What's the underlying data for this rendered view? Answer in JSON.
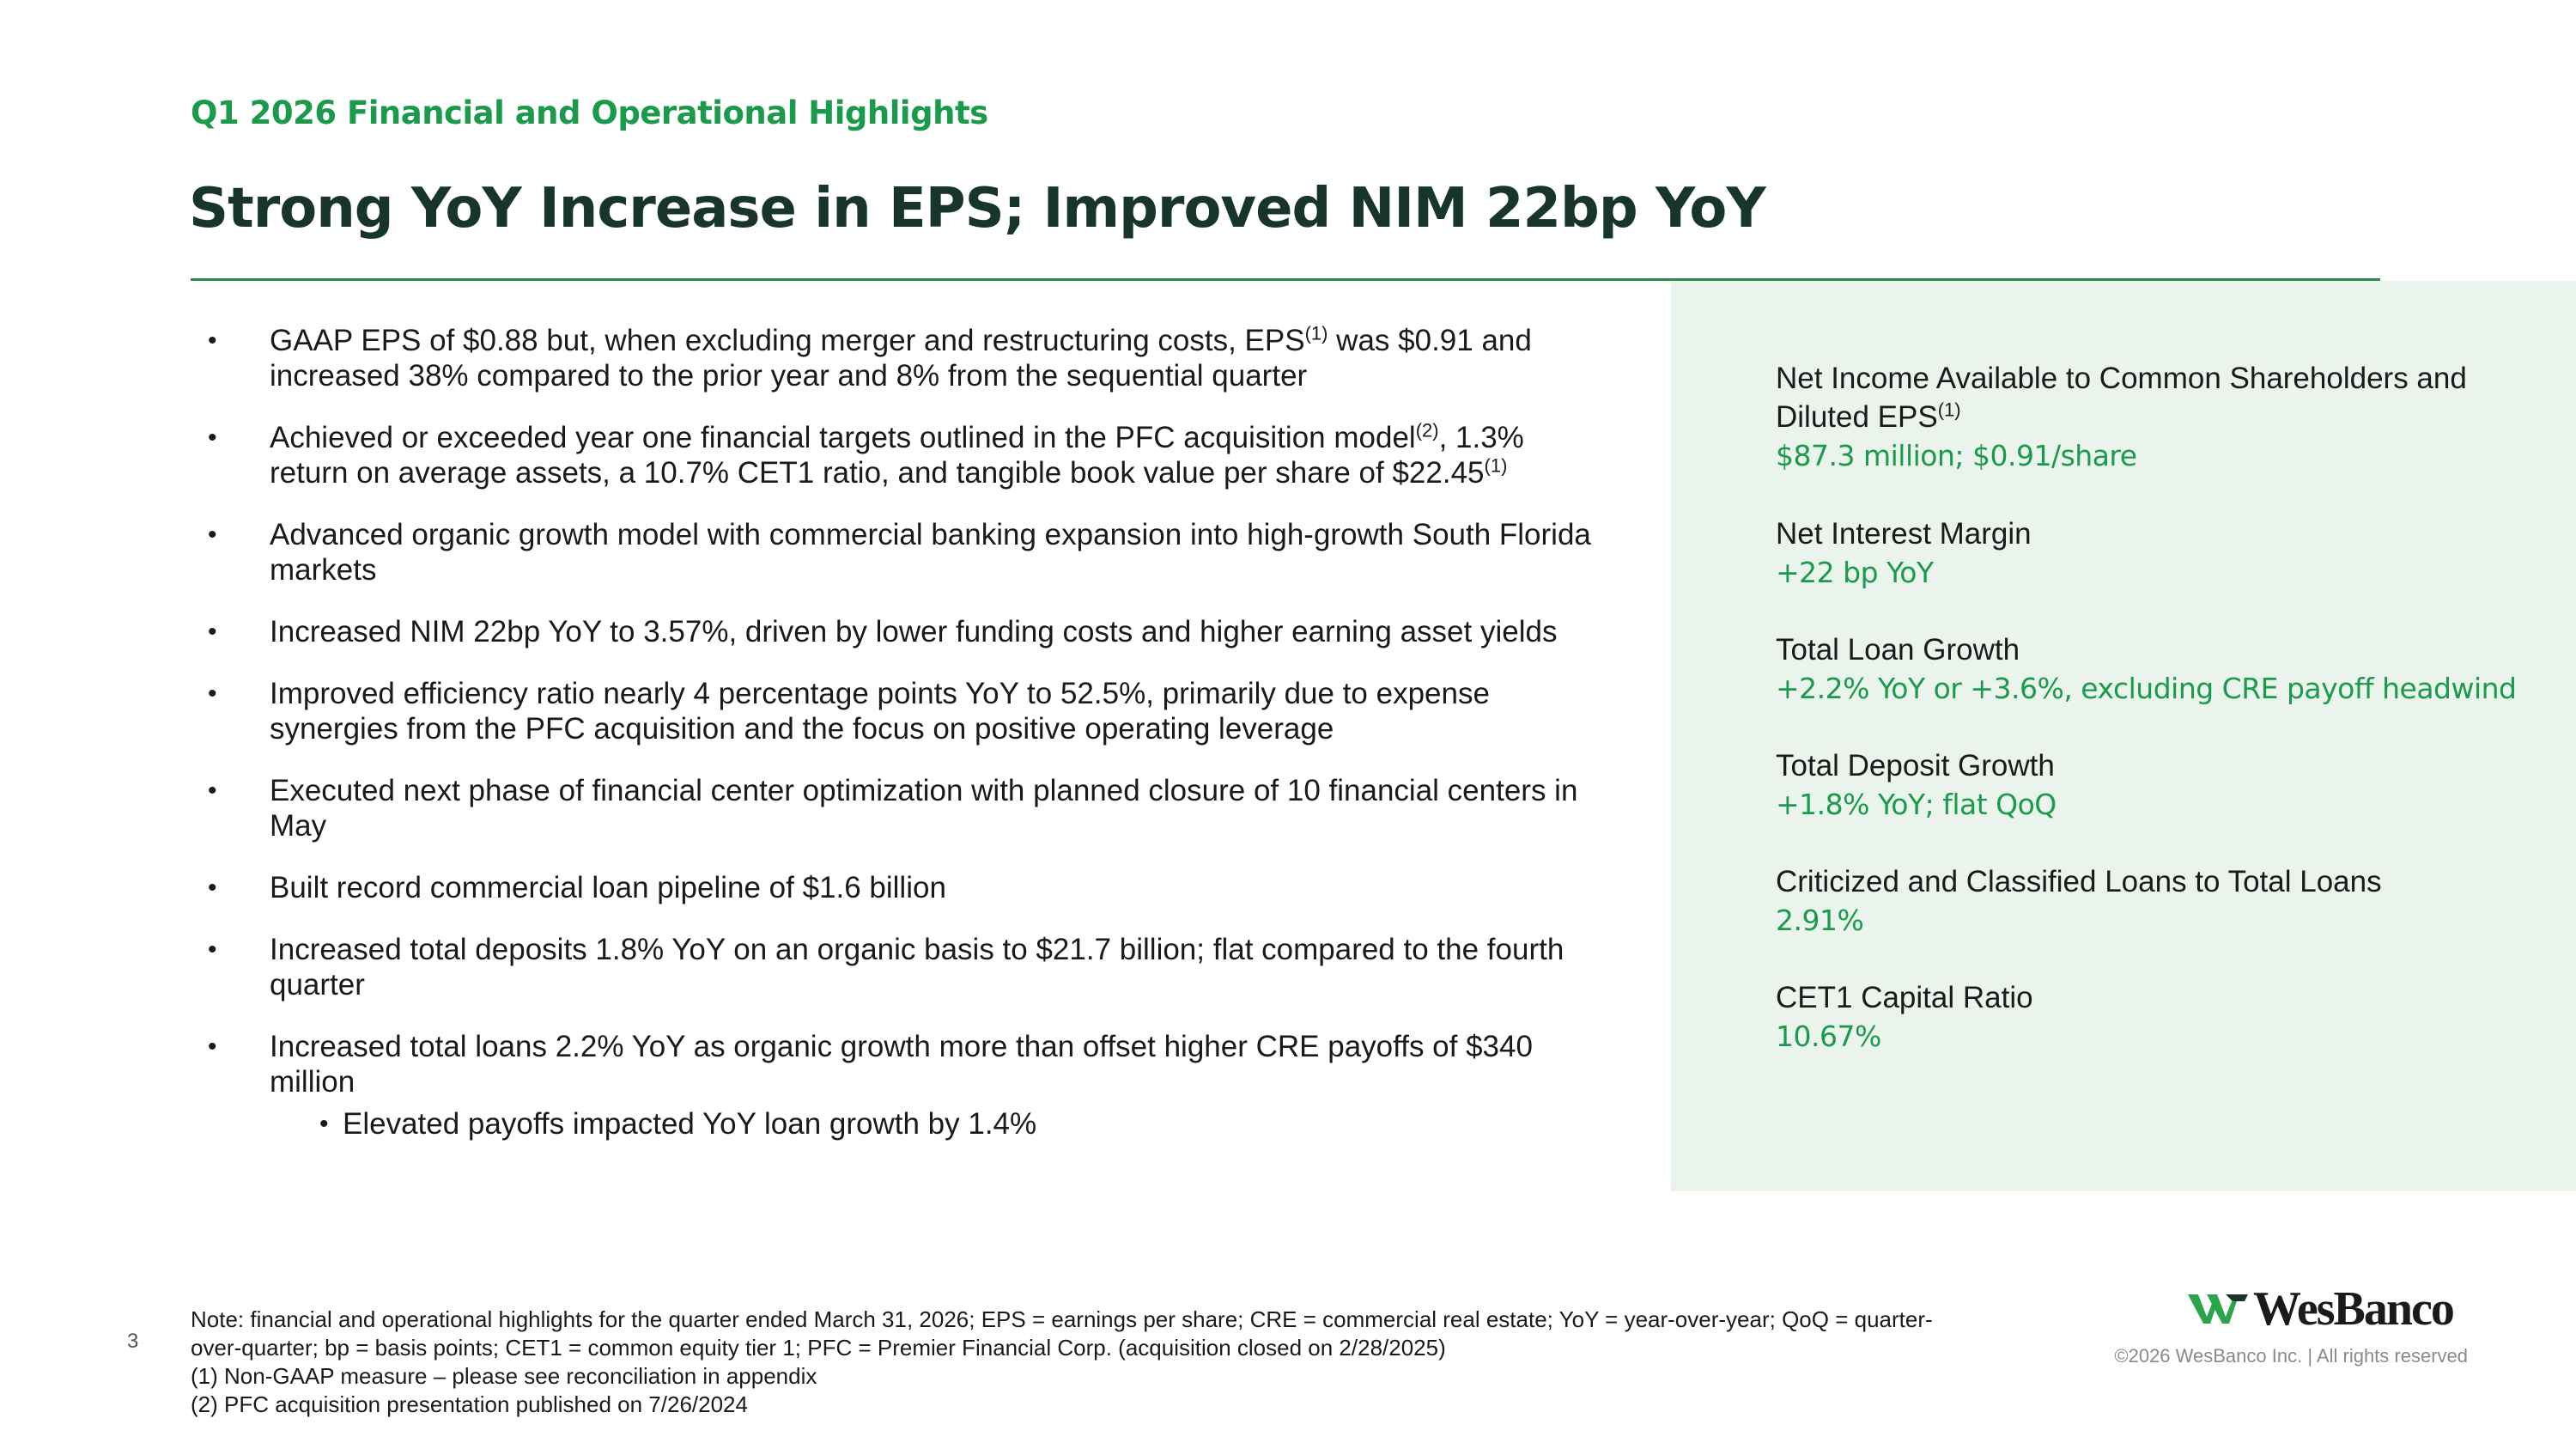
{
  "slide": {
    "eyebrow": "Q1 2026 Financial and Operational Highlights",
    "title": "Strong YoY Increase in EPS; Improved NIM 22bp YoY",
    "page_number": "3"
  },
  "bullets": [
    {
      "parts": [
        "GAAP EPS of $0.88 but, when excluding merger and restructuring costs, EPS",
        "(1)",
        " was $0.91 and increased 38% compared to the prior year and 8% from the sequential quarter"
      ]
    },
    {
      "parts": [
        "Achieved or exceeded year one financial targets outlined in the PFC acquisition model",
        "(2)",
        ", 1.3% return on average assets, a 10.7% CET1 ratio, and tangible book value per share of $22.45",
        "(1)"
      ]
    },
    {
      "text": "Advanced organic growth model with commercial banking expansion into high-growth South Florida markets"
    },
    {
      "text": "Increased NIM 22bp YoY to 3.57%, driven by lower funding costs and higher earning asset yields"
    },
    {
      "text": "Improved efficiency ratio nearly 4 percentage points YoY to 52.5%, primarily due to expense synergies from the PFC acquisition and the focus on positive operating leverage"
    },
    {
      "text": "Executed next phase of financial center optimization with planned closure of 10 financial centers in May"
    },
    {
      "text": "Built record commercial loan pipeline of $1.6 billion"
    },
    {
      "text": "Increased total deposits 1.8% YoY on an organic basis to $21.7 billion; flat compared to the fourth quarter"
    },
    {
      "text": "Increased total loans 2.2% YoY as organic growth more than offset higher CRE payoffs of $340 million",
      "sub": "Elevated payoffs impacted YoY loan growth by 1.4%"
    }
  ],
  "metrics": [
    {
      "label": "Net Income Available to Common Shareholders and Diluted EPS",
      "sup": "(1)",
      "value": "$87.3 million; $0.91/share"
    },
    {
      "label": "Net Interest Margin",
      "value": "+22 bp YoY"
    },
    {
      "label": "Total Loan Growth",
      "value": "+2.2% YoY or +3.6%, excluding CRE payoff headwind"
    },
    {
      "label": "Total Deposit Growth",
      "value": "+1.8% YoY; flat QoQ"
    },
    {
      "label": "Criticized and Classified Loans to Total Loans",
      "value": "2.91%"
    },
    {
      "label": "CET1 Capital Ratio",
      "value": "10.67%"
    }
  ],
  "footnotes": [
    "Note: financial and operational highlights for the quarter ended March 31, 2026; EPS = earnings per share; CRE = commercial real estate; YoY = year-over-year; QoQ = quarter-over-quarter; bp = basis points; CET1 = common equity tier 1; PFC = Premier Financial Corp. (acquisition closed on 2/28/2025)",
    "(1) Non-GAAP measure – please see reconciliation in appendix",
    "(2) PFC acquisition presentation published on 7/26/2024"
  ],
  "brand": {
    "logo_text": "WesBanco",
    "logo_mark_icon": "wesbanco-w-mark-icon",
    "copyright": "©2026 WesBanco Inc.  |  All rights reserved",
    "accent_color": "#1a9a4a",
    "title_color": "#17352a",
    "panel_color": "#eaf4ec"
  }
}
